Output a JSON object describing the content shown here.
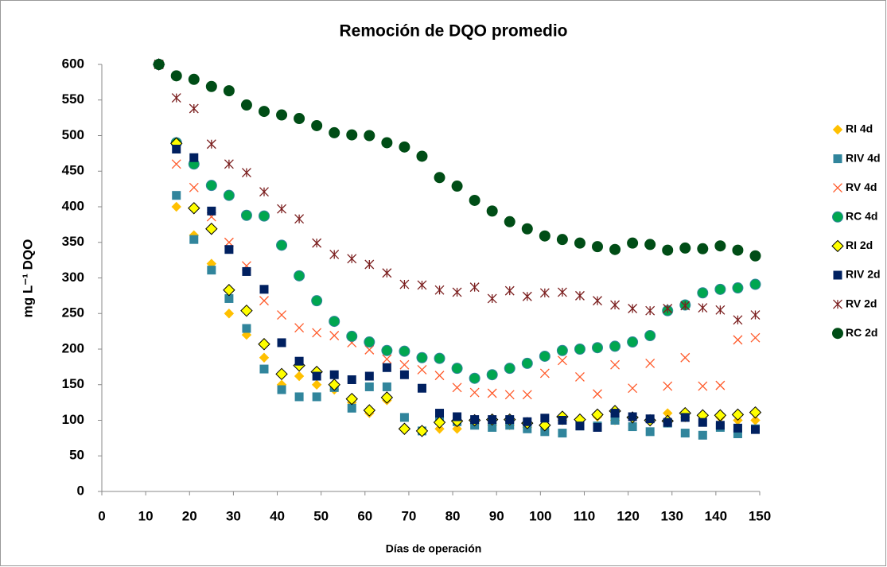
{
  "chart_data": {
    "type": "scatter",
    "title": "Remoción de DQO promedio",
    "xlabel": "Días de operación",
    "ylabel": "mg L⁻¹ DQO",
    "x": [
      13,
      17,
      21,
      25,
      29,
      33,
      37,
      41,
      45,
      49,
      53,
      57,
      61,
      65,
      69,
      73,
      77,
      81,
      85,
      89,
      93,
      97,
      101,
      105,
      109,
      113,
      117,
      121,
      125,
      129,
      133,
      137,
      141,
      145,
      149
    ],
    "xlim": [
      0,
      150
    ],
    "xticks": [
      0,
      10,
      20,
      30,
      40,
      50,
      60,
      70,
      80,
      90,
      100,
      110,
      120,
      130,
      140,
      150
    ],
    "ylim": [
      0,
      600
    ],
    "yticks": [
      0,
      50,
      100,
      150,
      200,
      250,
      300,
      350,
      400,
      450,
      500,
      550,
      600
    ],
    "grid": false,
    "legend": "right",
    "series": [
      {
        "name": "RI 4d",
        "color": "#ffc000",
        "edge": "#ffc000",
        "marker": "diamond-small",
        "values": [
          600,
          400,
          360,
          320,
          250,
          220,
          188,
          150,
          162,
          150,
          143,
          125,
          110,
          128,
          88,
          85,
          88,
          88,
          95,
          93,
          93,
          90,
          92,
          100,
          100,
          105,
          100,
          103,
          100,
          110,
          104,
          105,
          104,
          100,
          100
        ]
      },
      {
        "name": "RIV 4d",
        "color": "#31859c",
        "edge": "#31859c",
        "marker": "square",
        "values": [
          600,
          416,
          354,
          311,
          271,
          229,
          172,
          143,
          133,
          133,
          146,
          117,
          147,
          147,
          104,
          85,
          100,
          98,
          93,
          90,
          93,
          88,
          84,
          82,
          92,
          92,
          100,
          91,
          84,
          96,
          82,
          79,
          90,
          81,
          88
        ]
      },
      {
        "name": "RV 4d",
        "color": "#ff5a2a",
        "edge": "#ff5a2a",
        "marker": "x",
        "values": [
          600,
          460,
          427,
          386,
          350,
          317,
          268,
          248,
          230,
          223,
          219,
          209,
          199,
          186,
          178,
          171,
          163,
          146,
          139,
          138,
          136,
          136,
          166,
          184,
          161,
          137,
          178,
          145,
          180,
          148,
          188,
          148,
          149,
          213,
          216
        ]
      },
      {
        "name": "RC 4d",
        "color": "#00a650",
        "edge": "#31859c",
        "marker": "circle",
        "values": [
          600,
          490,
          460,
          430,
          416,
          388,
          387,
          346,
          303,
          268,
          239,
          218,
          210,
          198,
          197,
          188,
          187,
          173,
          159,
          164,
          173,
          180,
          190,
          198,
          200,
          202,
          204,
          210,
          219,
          254,
          262,
          279,
          284,
          286,
          291
        ]
      },
      {
        "name": "RI 2d",
        "color": "#ffff00",
        "edge": "#000000",
        "marker": "diamond",
        "values": [
          600,
          489,
          398,
          369,
          283,
          254,
          207,
          165,
          177,
          168,
          150,
          130,
          114,
          132,
          88,
          85,
          97,
          99,
          100,
          101,
          101,
          96,
          93,
          105,
          101,
          108,
          113,
          104,
          100,
          99,
          110,
          107,
          107,
          108,
          111
        ]
      },
      {
        "name": "RIV 2d",
        "color": "#002060",
        "edge": "#002060",
        "marker": "square",
        "values": [
          600,
          481,
          469,
          394,
          340,
          309,
          284,
          209,
          183,
          162,
          164,
          157,
          162,
          174,
          164,
          145,
          110,
          105,
          101,
          101,
          101,
          98,
          103,
          100,
          92,
          90,
          110,
          105,
          102,
          97,
          104,
          97,
          93,
          89,
          87
        ]
      },
      {
        "name": "RV 2d",
        "color": "#7b1f1f",
        "edge": "#7b1f1f",
        "marker": "star",
        "values": [
          600,
          553,
          538,
          488,
          460,
          448,
          421,
          397,
          383,
          349,
          333,
          327,
          319,
          307,
          291,
          290,
          283,
          280,
          287,
          271,
          282,
          274,
          279,
          280,
          275,
          268,
          262,
          257,
          254,
          257,
          261,
          258,
          255,
          241,
          248
        ]
      },
      {
        "name": "RC 2d",
        "color": "#004d16",
        "edge": "#004d16",
        "marker": "circle",
        "values": [
          600,
          584,
          579,
          569,
          563,
          543,
          534,
          529,
          524,
          514,
          504,
          501,
          500,
          490,
          484,
          471,
          441,
          429,
          409,
          394,
          379,
          369,
          359,
          354,
          349,
          344,
          340,
          349,
          347,
          339,
          342,
          341,
          345,
          339,
          331
        ]
      }
    ]
  }
}
